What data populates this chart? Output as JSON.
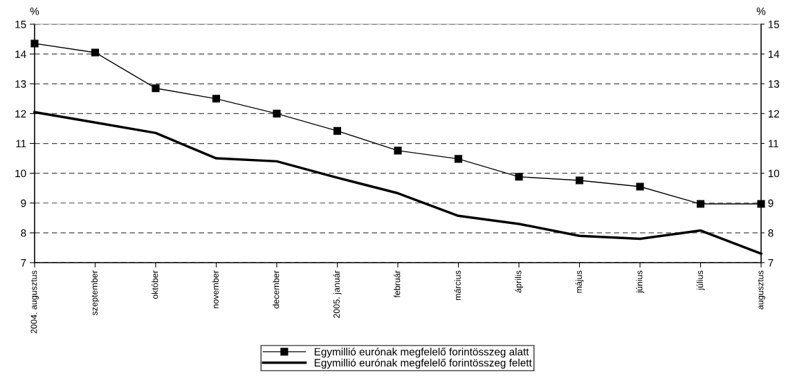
{
  "chart_data": {
    "type": "line",
    "ylabel": "%",
    "y2label": "%",
    "categories": [
      "2004. augusztus",
      "szeptember",
      "október",
      "november",
      "december",
      "2005. január",
      "február",
      "március",
      "április",
      "május",
      "június",
      "július",
      "augusztus"
    ],
    "series": [
      {
        "name": "Egymillió eurónak megfelelő forintösszeg alatt",
        "color": "#000000",
        "marker": "square",
        "values": [
          14.35,
          14.05,
          12.85,
          12.5,
          12.0,
          11.42,
          10.76,
          10.48,
          9.88,
          9.76,
          9.55,
          8.97,
          8.97
        ]
      },
      {
        "name": "Egymillió eurónak megfelelő forintösszeg felett",
        "color": "#000000",
        "marker": "none",
        "values": [
          12.05,
          11.7,
          11.35,
          10.5,
          10.4,
          9.85,
          9.33,
          8.57,
          8.3,
          7.9,
          7.8,
          8.08,
          7.3
        ]
      }
    ],
    "ylim": [
      7,
      15
    ],
    "yticks": [
      7,
      8,
      9,
      10,
      11,
      12,
      13,
      14,
      15
    ],
    "y2lim": [
      7,
      15
    ],
    "y2ticks": [
      7,
      8,
      9,
      10,
      11,
      12,
      13,
      14,
      15
    ],
    "grid": "y",
    "legend": "bottom",
    "line_style": "solid"
  }
}
